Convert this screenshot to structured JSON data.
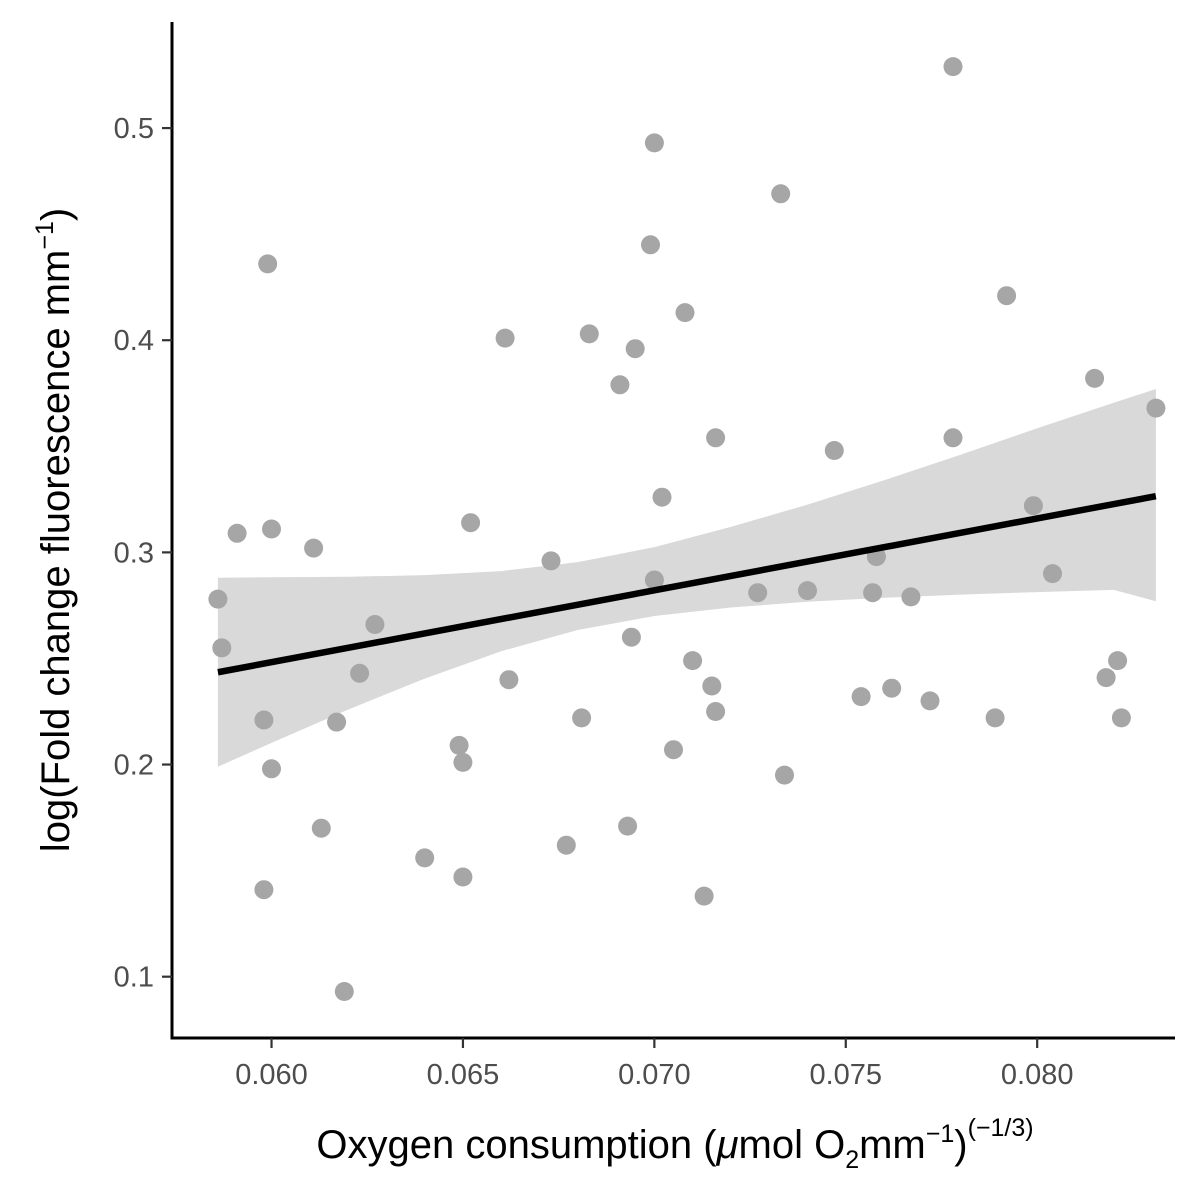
{
  "chart_data": {
    "type": "scatter",
    "xlabel": {
      "pre": "Oxygen consumption (",
      "mu": "μ",
      "mol": "mol O",
      "sub": "2",
      "mm": "mm",
      "sup1": "−1",
      "close": ")",
      "sup2": "(−1/3)"
    },
    "ylabel": {
      "pre": "log(Fold change fluorescence mm",
      "sup": "−1",
      "post": ")"
    },
    "xlim": [
      0.0574,
      0.0836
    ],
    "ylim": [
      0.0711,
      0.55
    ],
    "xticks": [
      0.06,
      0.065,
      0.07,
      0.075,
      0.08
    ],
    "xtick_labels": [
      "0.060",
      "0.065",
      "0.070",
      "0.075",
      "0.080"
    ],
    "yticks": [
      0.1,
      0.2,
      0.3,
      0.4,
      0.5
    ],
    "ytick_labels": [
      "0.1",
      "0.2",
      "0.3",
      "0.4",
      "0.5"
    ],
    "grid": false,
    "point_color": "#a6a6a6",
    "fit_color": "#000000",
    "band_color": "#d9d9d9",
    "points": [
      {
        "x": 0.0586,
        "y": 0.278
      },
      {
        "x": 0.0587,
        "y": 0.255
      },
      {
        "x": 0.0591,
        "y": 0.309
      },
      {
        "x": 0.0598,
        "y": 0.221
      },
      {
        "x": 0.0598,
        "y": 0.141
      },
      {
        "x": 0.0599,
        "y": 0.436
      },
      {
        "x": 0.06,
        "y": 0.311
      },
      {
        "x": 0.06,
        "y": 0.198
      },
      {
        "x": 0.0611,
        "y": 0.302
      },
      {
        "x": 0.0613,
        "y": 0.17
      },
      {
        "x": 0.0617,
        "y": 0.22
      },
      {
        "x": 0.0619,
        "y": 0.093
      },
      {
        "x": 0.0623,
        "y": 0.243
      },
      {
        "x": 0.0627,
        "y": 0.266
      },
      {
        "x": 0.064,
        "y": 0.156
      },
      {
        "x": 0.0649,
        "y": 0.209
      },
      {
        "x": 0.065,
        "y": 0.201
      },
      {
        "x": 0.065,
        "y": 0.147
      },
      {
        "x": 0.0652,
        "y": 0.314
      },
      {
        "x": 0.0661,
        "y": 0.401
      },
      {
        "x": 0.0662,
        "y": 0.24
      },
      {
        "x": 0.0673,
        "y": 0.296
      },
      {
        "x": 0.0677,
        "y": 0.162
      },
      {
        "x": 0.0681,
        "y": 0.222
      },
      {
        "x": 0.0683,
        "y": 0.403
      },
      {
        "x": 0.0691,
        "y": 0.379
      },
      {
        "x": 0.0693,
        "y": 0.171
      },
      {
        "x": 0.0694,
        "y": 0.26
      },
      {
        "x": 0.0695,
        "y": 0.396
      },
      {
        "x": 0.0699,
        "y": 0.445
      },
      {
        "x": 0.07,
        "y": 0.493
      },
      {
        "x": 0.07,
        "y": 0.287
      },
      {
        "x": 0.0702,
        "y": 0.326
      },
      {
        "x": 0.0705,
        "y": 0.207
      },
      {
        "x": 0.0708,
        "y": 0.413
      },
      {
        "x": 0.071,
        "y": 0.249
      },
      {
        "x": 0.0713,
        "y": 0.138
      },
      {
        "x": 0.0715,
        "y": 0.237
      },
      {
        "x": 0.0716,
        "y": 0.225
      },
      {
        "x": 0.0716,
        "y": 0.354
      },
      {
        "x": 0.0727,
        "y": 0.281
      },
      {
        "x": 0.0733,
        "y": 0.469
      },
      {
        "x": 0.0734,
        "y": 0.195
      },
      {
        "x": 0.074,
        "y": 0.282
      },
      {
        "x": 0.0747,
        "y": 0.348
      },
      {
        "x": 0.0754,
        "y": 0.232
      },
      {
        "x": 0.0757,
        "y": 0.281
      },
      {
        "x": 0.0758,
        "y": 0.298
      },
      {
        "x": 0.0762,
        "y": 0.236
      },
      {
        "x": 0.0767,
        "y": 0.279
      },
      {
        "x": 0.0772,
        "y": 0.23
      },
      {
        "x": 0.0778,
        "y": 0.529
      },
      {
        "x": 0.0778,
        "y": 0.354
      },
      {
        "x": 0.0789,
        "y": 0.222
      },
      {
        "x": 0.0792,
        "y": 0.421
      },
      {
        "x": 0.0799,
        "y": 0.322
      },
      {
        "x": 0.0804,
        "y": 0.29
      },
      {
        "x": 0.0815,
        "y": 0.382
      },
      {
        "x": 0.0818,
        "y": 0.241
      },
      {
        "x": 0.0821,
        "y": 0.249
      },
      {
        "x": 0.0822,
        "y": 0.222
      },
      {
        "x": 0.0831,
        "y": 0.368
      }
    ],
    "fit": {
      "method": "linear",
      "x": [
        0.0586,
        0.0831
      ],
      "y": [
        0.2435,
        0.3265
      ]
    },
    "confidence_band": {
      "x": [
        0.0586,
        0.06,
        0.062,
        0.064,
        0.066,
        0.068,
        0.07,
        0.072,
        0.074,
        0.076,
        0.078,
        0.08,
        0.082,
        0.0831
      ],
      "lower": [
        0.199,
        0.2102,
        0.2259,
        0.2405,
        0.2534,
        0.2634,
        0.27,
        0.274,
        0.2767,
        0.2786,
        0.2801,
        0.2813,
        0.2823,
        0.277
      ],
      "upper": [
        0.288,
        0.2883,
        0.2885,
        0.2893,
        0.2912,
        0.2954,
        0.3025,
        0.312,
        0.3225,
        0.334,
        0.346,
        0.3585,
        0.3705,
        0.377
      ]
    }
  }
}
